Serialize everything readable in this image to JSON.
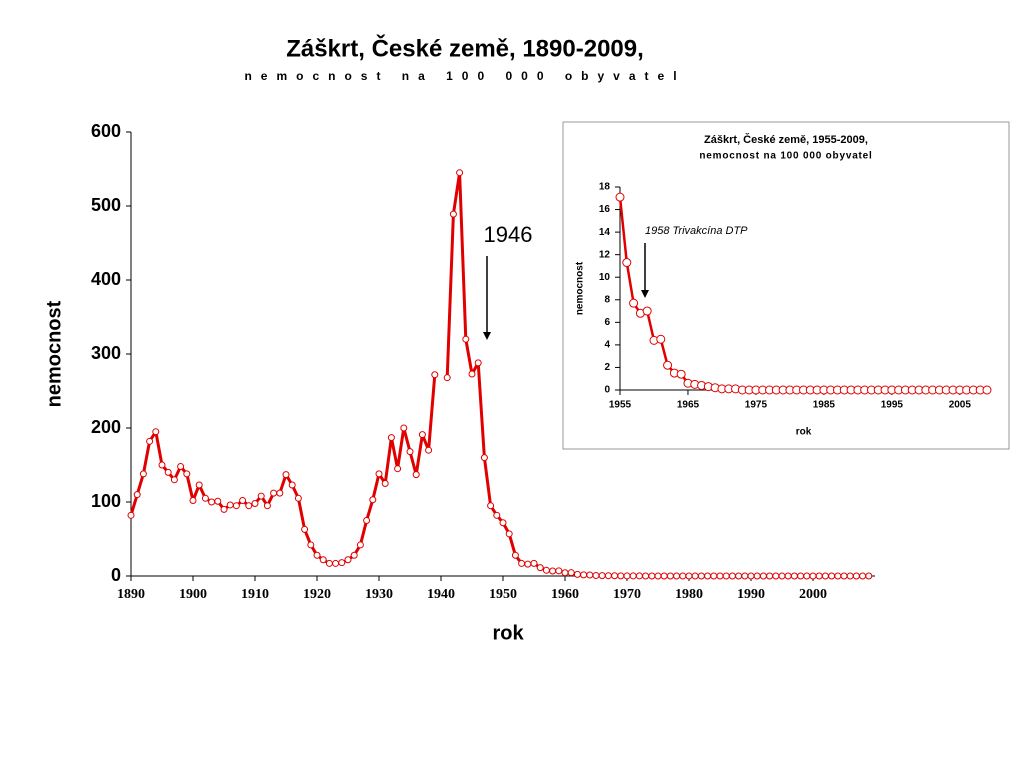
{
  "chart_data": [
    {
      "type": "line",
      "title": "Záškrt, České země, 1890-2009,",
      "subtitle": "nemocnost na 100 000 obyvatel",
      "x_label": "rok",
      "y_label": "nemocnost",
      "annotation": "1946",
      "x": [
        1890,
        1891,
        1892,
        1893,
        1894,
        1895,
        1896,
        1897,
        1898,
        1899,
        1900,
        1901,
        1902,
        1903,
        1904,
        1905,
        1906,
        1907,
        1908,
        1909,
        1910,
        1911,
        1912,
        1913,
        1914,
        1915,
        1916,
        1917,
        1918,
        1919,
        1920,
        1921,
        1922,
        1923,
        1924,
        1925,
        1926,
        1927,
        1928,
        1929,
        1930,
        1931,
        1932,
        1933,
        1934,
        1935,
        1936,
        1937,
        1938,
        1939,
        1940,
        1941,
        1942,
        1943,
        1944,
        1945,
        1946,
        1947,
        1948,
        1949,
        1950,
        1951,
        1952,
        1953,
        1954,
        1955,
        1956,
        1957,
        1958,
        1959,
        1960,
        1961,
        1962,
        1963,
        1964,
        1965,
        1966,
        1967,
        1968,
        1969,
        1970,
        1971,
        1972,
        1973,
        1974,
        1975,
        1976,
        1977,
        1978,
        1979,
        1980,
        1981,
        1982,
        1983,
        1984,
        1985,
        1986,
        1987,
        1988,
        1989,
        1990,
        1991,
        1992,
        1993,
        1994,
        1995,
        1996,
        1997,
        1998,
        1999,
        2000,
        2001,
        2002,
        2003,
        2004,
        2005,
        2006,
        2007,
        2008,
        2009
      ],
      "series": [
        {
          "name": "nemocnost",
          "color": "#e00000",
          "values": [
            82,
            110,
            138,
            182,
            195,
            150,
            140,
            130,
            148,
            138,
            102,
            123,
            105,
            100,
            101,
            90,
            96,
            95,
            102,
            95,
            98,
            108,
            95,
            112,
            112,
            137,
            123,
            105,
            63,
            42,
            28,
            22,
            17,
            17,
            18,
            22,
            28,
            42,
            75,
            103,
            138,
            125,
            187,
            145,
            200,
            168,
            137,
            191,
            170,
            272,
            null,
            268,
            489,
            545,
            320,
            273,
            288,
            160,
            95,
            82,
            72,
            57,
            28,
            17,
            16,
            17.1,
            11.3,
            7.7,
            6.8,
            7.0,
            4.4,
            4.5,
            2.2,
            1.5,
            1.4,
            0.6,
            0.5,
            0.4,
            0.3,
            0.2,
            0.1,
            0.1,
            0.1,
            0,
            0,
            0,
            0,
            0,
            0,
            0,
            0,
            0,
            0,
            0,
            0,
            0,
            0,
            0,
            0,
            0,
            0,
            0,
            0,
            0,
            0,
            0,
            0,
            0,
            0,
            0,
            0,
            0,
            0,
            0,
            0,
            0,
            0,
            0,
            0,
            0
          ]
        }
      ],
      "xlim": [
        1890,
        2010
      ],
      "xticks": [
        1890,
        1900,
        1910,
        1920,
        1930,
        1940,
        1950,
        1960,
        1970,
        1980,
        1990,
        2000
      ],
      "ylim": [
        0,
        600
      ],
      "yticks": [
        0,
        100,
        200,
        300,
        400,
        500,
        600
      ]
    },
    {
      "type": "line",
      "title": "Záškrt, České země, 1955-2009,",
      "subtitle": "nemocnost na 100 000 obyvatel",
      "x_label": "rok",
      "y_label": "nemocnost",
      "annotation": "1958 Trivakcína DTP",
      "x": [
        1955,
        1956,
        1957,
        1958,
        1959,
        1960,
        1961,
        1962,
        1963,
        1964,
        1965,
        1966,
        1967,
        1968,
        1969,
        1970,
        1971,
        1972,
        1973,
        1974,
        1975,
        1976,
        1977,
        1978,
        1979,
        1980,
        1981,
        1982,
        1983,
        1984,
        1985,
        1986,
        1987,
        1988,
        1989,
        1990,
        1991,
        1992,
        1993,
        1994,
        1995,
        1996,
        1997,
        1998,
        1999,
        2000,
        2001,
        2002,
        2003,
        2004,
        2005,
        2006,
        2007,
        2008,
        2009
      ],
      "series": [
        {
          "name": "nemocnost",
          "color": "#e00000",
          "values": [
            17.1,
            11.3,
            7.7,
            6.8,
            7.0,
            4.4,
            4.5,
            2.2,
            1.5,
            1.4,
            0.6,
            0.5,
            0.4,
            0.3,
            0.2,
            0.1,
            0.1,
            0.1,
            0,
            0,
            0,
            0,
            0,
            0,
            0,
            0,
            0,
            0,
            0,
            0,
            0,
            0,
            0,
            0,
            0,
            0,
            0,
            0,
            0,
            0,
            0,
            0,
            0,
            0,
            0,
            0,
            0,
            0,
            0,
            0,
            0,
            0,
            0,
            0,
            0
          ]
        }
      ],
      "xlim": [
        1955,
        2009
      ],
      "xticks": [
        1955,
        1965,
        1975,
        1985,
        1995,
        2005
      ],
      "ylim": [
        0,
        18
      ],
      "yticks": [
        0,
        2,
        4,
        6,
        8,
        10,
        12,
        14,
        16,
        18
      ]
    }
  ]
}
